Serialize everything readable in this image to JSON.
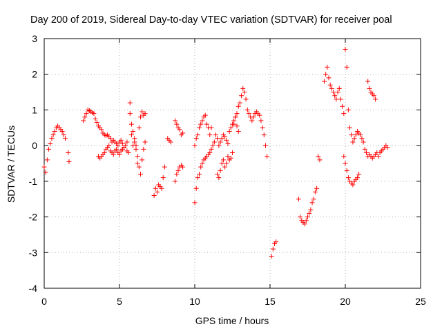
{
  "chart_data": {
    "type": "scatter",
    "title": "Day 200 of 2019, Sidereal Day-to-day VTEC variation (SDTVAR) for receiver poal",
    "xlabel": "GPS time / hours",
    "ylabel": "SDTVAR / TECUs",
    "xlim": [
      0,
      25
    ],
    "ylim": [
      -4,
      3
    ],
    "xticks": [
      0,
      5,
      10,
      15,
      20,
      25
    ],
    "yticks": [
      -4,
      -3,
      -2,
      -1,
      0,
      1,
      2,
      3
    ],
    "grid": true,
    "marker": "+",
    "color": "#ff0000",
    "series": [
      {
        "name": "SDTVAR",
        "x": [
          0.0,
          0.1,
          0.2,
          0.3,
          0.4,
          0.5,
          0.6,
          0.7,
          0.8,
          0.9,
          1.0,
          1.1,
          1.2,
          1.3,
          1.4,
          1.6,
          1.65,
          2.6,
          2.7,
          2.8,
          2.9,
          3.0,
          3.1,
          3.2,
          3.3,
          3.4,
          3.5,
          3.6,
          3.7,
          3.8,
          3.9,
          4.0,
          4.1,
          4.2,
          4.3,
          4.4,
          4.5,
          4.6,
          4.7,
          4.8,
          4.9,
          5.0,
          5.1,
          5.2,
          5.3,
          5.4,
          5.5,
          3.6,
          3.7,
          3.8,
          3.9,
          4.0,
          4.1,
          4.2,
          4.3,
          4.4,
          4.5,
          4.6,
          4.7,
          4.8,
          4.9,
          5.0,
          5.1,
          5.2,
          5.3,
          5.5,
          5.6,
          5.7,
          5.8,
          5.9,
          6.0,
          6.1,
          6.2,
          6.3,
          6.4,
          6.5,
          6.6,
          6.7,
          5.7,
          5.8,
          5.9,
          6.0,
          6.1,
          6.2,
          6.3,
          6.4,
          6.5,
          6.6,
          6.7,
          7.3,
          7.4,
          7.5,
          7.6,
          7.7,
          7.8,
          7.9,
          8.0,
          8.2,
          8.3,
          8.4,
          8.7,
          8.8,
          8.9,
          9.0,
          9.1,
          9.2,
          8.7,
          8.8,
          8.9,
          9.0,
          9.1,
          9.2,
          10.0,
          10.1,
          10.2,
          10.3,
          10.4,
          10.5,
          10.6,
          10.7,
          10.8,
          10.9,
          11.0,
          11.1,
          11.2,
          11.3,
          11.4,
          11.5,
          11.6,
          11.7,
          11.8,
          11.9,
          12.0,
          12.1,
          12.2,
          12.3,
          12.4,
          12.5,
          12.6,
          12.7,
          12.8,
          12.9,
          10.0,
          10.1,
          10.2,
          10.3,
          10.4,
          10.5,
          10.6,
          10.7,
          10.8,
          10.9,
          11.0,
          11.1,
          11.5,
          11.6,
          11.7,
          11.8,
          11.9,
          12.0,
          12.1,
          12.2,
          12.3,
          12.4,
          12.5,
          13.0,
          13.1,
          13.2,
          13.3,
          13.4,
          13.5,
          13.6,
          13.7,
          13.8,
          13.9,
          14.0,
          14.1,
          14.2,
          14.3,
          14.4,
          14.5,
          14.6,
          14.7,
          14.8,
          12.6,
          12.7,
          12.8,
          12.9,
          15.1,
          15.2,
          15.3,
          15.4,
          16.9,
          17.0,
          17.1,
          17.2,
          17.3,
          17.4,
          17.5,
          17.6,
          17.7,
          17.8,
          17.9,
          18.0,
          18.1,
          18.2,
          18.3,
          18.6,
          18.7,
          18.8,
          18.9,
          19.0,
          19.1,
          19.2,
          19.3,
          19.4,
          19.5,
          19.6,
          19.7,
          19.8,
          19.9,
          20.0,
          20.1,
          20.2,
          20.3,
          20.4,
          20.5,
          20.6,
          20.7,
          20.8,
          20.9,
          21.0,
          21.1,
          21.2,
          21.3,
          21.4,
          21.5,
          21.6,
          21.7,
          21.8,
          21.9,
          22.0,
          22.1,
          22.2,
          22.3,
          22.4,
          22.5,
          22.6,
          22.7,
          22.8,
          19.9,
          20.0,
          20.1,
          20.2,
          20.3,
          20.4,
          20.5,
          20.6,
          20.7,
          20.8,
          20.9,
          21.5,
          21.6,
          21.7,
          21.8,
          21.9,
          22.0
        ],
        "y": [
          -0.6,
          -0.75,
          -0.4,
          -0.1,
          0.05,
          0.2,
          0.3,
          0.4,
          0.5,
          0.55,
          0.5,
          0.45,
          0.4,
          0.3,
          0.2,
          -0.2,
          -0.45,
          0.7,
          0.8,
          0.9,
          1.0,
          0.98,
          0.95,
          0.92,
          0.9,
          0.75,
          0.65,
          0.55,
          0.5,
          0.45,
          0.35,
          0.3,
          0.28,
          0.3,
          0.25,
          0.2,
          0.1,
          0.15,
          0.1,
          0.05,
          0.0,
          0.1,
          0.15,
          0.05,
          -0.05,
          0.0,
          0.1,
          -0.3,
          -0.35,
          -0.3,
          -0.25,
          -0.2,
          -0.1,
          -0.05,
          0.0,
          -0.15,
          -0.2,
          -0.25,
          -0.15,
          -0.1,
          -0.2,
          -0.25,
          -0.15,
          -0.1,
          -0.05,
          -0.15,
          -0.2,
          0.9,
          0.6,
          0.4,
          0.2,
          -0.1,
          -0.5,
          0.5,
          0.8,
          0.95,
          0.85,
          0.9,
          1.2,
          0.3,
          0.0,
          0.1,
          0.0,
          -0.3,
          -0.6,
          -0.8,
          -0.4,
          -0.1,
          0.1,
          -1.4,
          -1.2,
          -1.3,
          -1.1,
          -1.15,
          -1.2,
          -0.9,
          -0.6,
          0.2,
          0.15,
          0.1,
          -1.0,
          -0.8,
          -0.7,
          -0.6,
          -0.55,
          -0.6,
          0.7,
          0.6,
          0.5,
          0.45,
          0.3,
          0.35,
          -1.6,
          -1.2,
          -0.9,
          -0.8,
          -0.6,
          -0.5,
          -0.4,
          -0.35,
          -0.3,
          -0.25,
          -0.2,
          -0.1,
          0.0,
          0.1,
          0.3,
          0.2,
          0.0,
          0.1,
          0.2,
          0.3,
          0.25,
          0.15,
          0.05,
          0.4,
          0.5,
          0.6,
          0.7,
          0.8,
          0.55,
          0.4,
          0.0,
          0.2,
          0.3,
          0.5,
          0.6,
          0.7,
          0.8,
          0.85,
          0.6,
          0.5,
          0.3,
          0.5,
          -0.8,
          -0.9,
          -0.7,
          -0.5,
          -0.4,
          -0.6,
          -0.5,
          -0.3,
          -0.4,
          -0.35,
          -0.2,
          1.2,
          1.4,
          1.6,
          1.5,
          1.3,
          1.0,
          0.9,
          0.8,
          0.7,
          0.8,
          0.9,
          0.95,
          0.9,
          0.85,
          0.7,
          0.5,
          0.3,
          0.0,
          -0.3,
          0.6,
          0.8,
          0.9,
          1.1,
          -3.1,
          -2.9,
          -2.75,
          -2.7,
          -1.5,
          -2.0,
          -2.1,
          -2.15,
          -2.2,
          -2.1,
          -2.0,
          -1.9,
          -1.8,
          -1.6,
          -1.5,
          -1.3,
          -1.2,
          -0.3,
          -0.4,
          1.8,
          2.0,
          2.2,
          1.9,
          1.7,
          1.6,
          1.5,
          1.4,
          1.3,
          1.5,
          1.6,
          1.3,
          1.1,
          0.9,
          2.7,
          2.2,
          1.0,
          0.5,
          0.3,
          0.1,
          0.2,
          0.3,
          0.4,
          0.35,
          0.3,
          0.2,
          0.1,
          -0.1,
          -0.2,
          -0.3,
          -0.25,
          -0.3,
          -0.35,
          -0.3,
          -0.25,
          -0.2,
          -0.3,
          -0.2,
          -0.15,
          -0.1,
          -0.05,
          0.0,
          -0.05,
          -0.3,
          -0.5,
          -0.7,
          -0.9,
          -1.0,
          -1.05,
          -1.1,
          -1.0,
          -0.95,
          -0.9,
          -0.8,
          1.8,
          1.6,
          1.5,
          1.45,
          1.4,
          1.3
        ]
      }
    ]
  }
}
